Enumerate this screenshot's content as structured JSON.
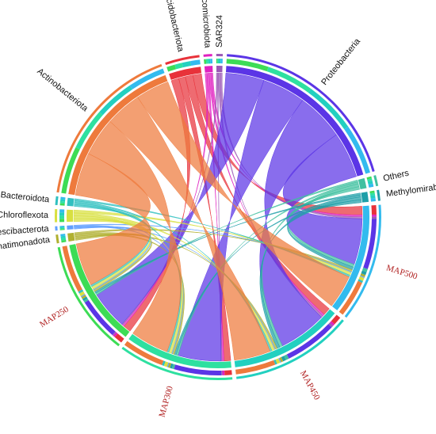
{
  "chart_data": {
    "type": "chord",
    "groups": [
      {
        "name": "Acidobacteriota",
        "color": "#e8323a"
      },
      {
        "name": "Verrucomicrobiota",
        "color": "#e020c0"
      },
      {
        "name": "SAR324",
        "color": "#9b59b6"
      },
      {
        "name": "Proteobacteria",
        "color": "#5b35e6"
      },
      {
        "name": "Others",
        "color": "#40c0a0"
      },
      {
        "name": "Methylomirabilota",
        "color": "#1f9fa8"
      },
      {
        "name": "Gemmatimonadota",
        "color": "#b0b030"
      },
      {
        "name": "Latescibacterota",
        "color": "#60a0ff"
      },
      {
        "name": "Chloroflexota",
        "color": "#d8e040"
      },
      {
        "name": "Bacteroidota",
        "color": "#30c0c0"
      },
      {
        "name": "Actinobacteriota",
        "color": "#ee7a3c"
      }
    ],
    "samples": [
      {
        "name": "MAP250",
        "color": "#3ddc55"
      },
      {
        "name": "MAP300",
        "color": "#2ee0a0"
      },
      {
        "name": "MAP450",
        "color": "#22d0c0"
      },
      {
        "name": "MAP500",
        "color": "#33bbee"
      }
    ],
    "matrix": [
      [
        8,
        7,
        8,
        9
      ],
      [
        2,
        2,
        2,
        2
      ],
      [
        1,
        1,
        2,
        2
      ],
      [
        40,
        45,
        50,
        48
      ],
      [
        2,
        2,
        3,
        3
      ],
      [
        2,
        2,
        3,
        3
      ],
      [
        2,
        2,
        2,
        2
      ],
      [
        1,
        1,
        1,
        1
      ],
      [
        3,
        3,
        3,
        3
      ],
      [
        2,
        2,
        2,
        2
      ],
      [
        45,
        40,
        38,
        35
      ]
    ]
  }
}
